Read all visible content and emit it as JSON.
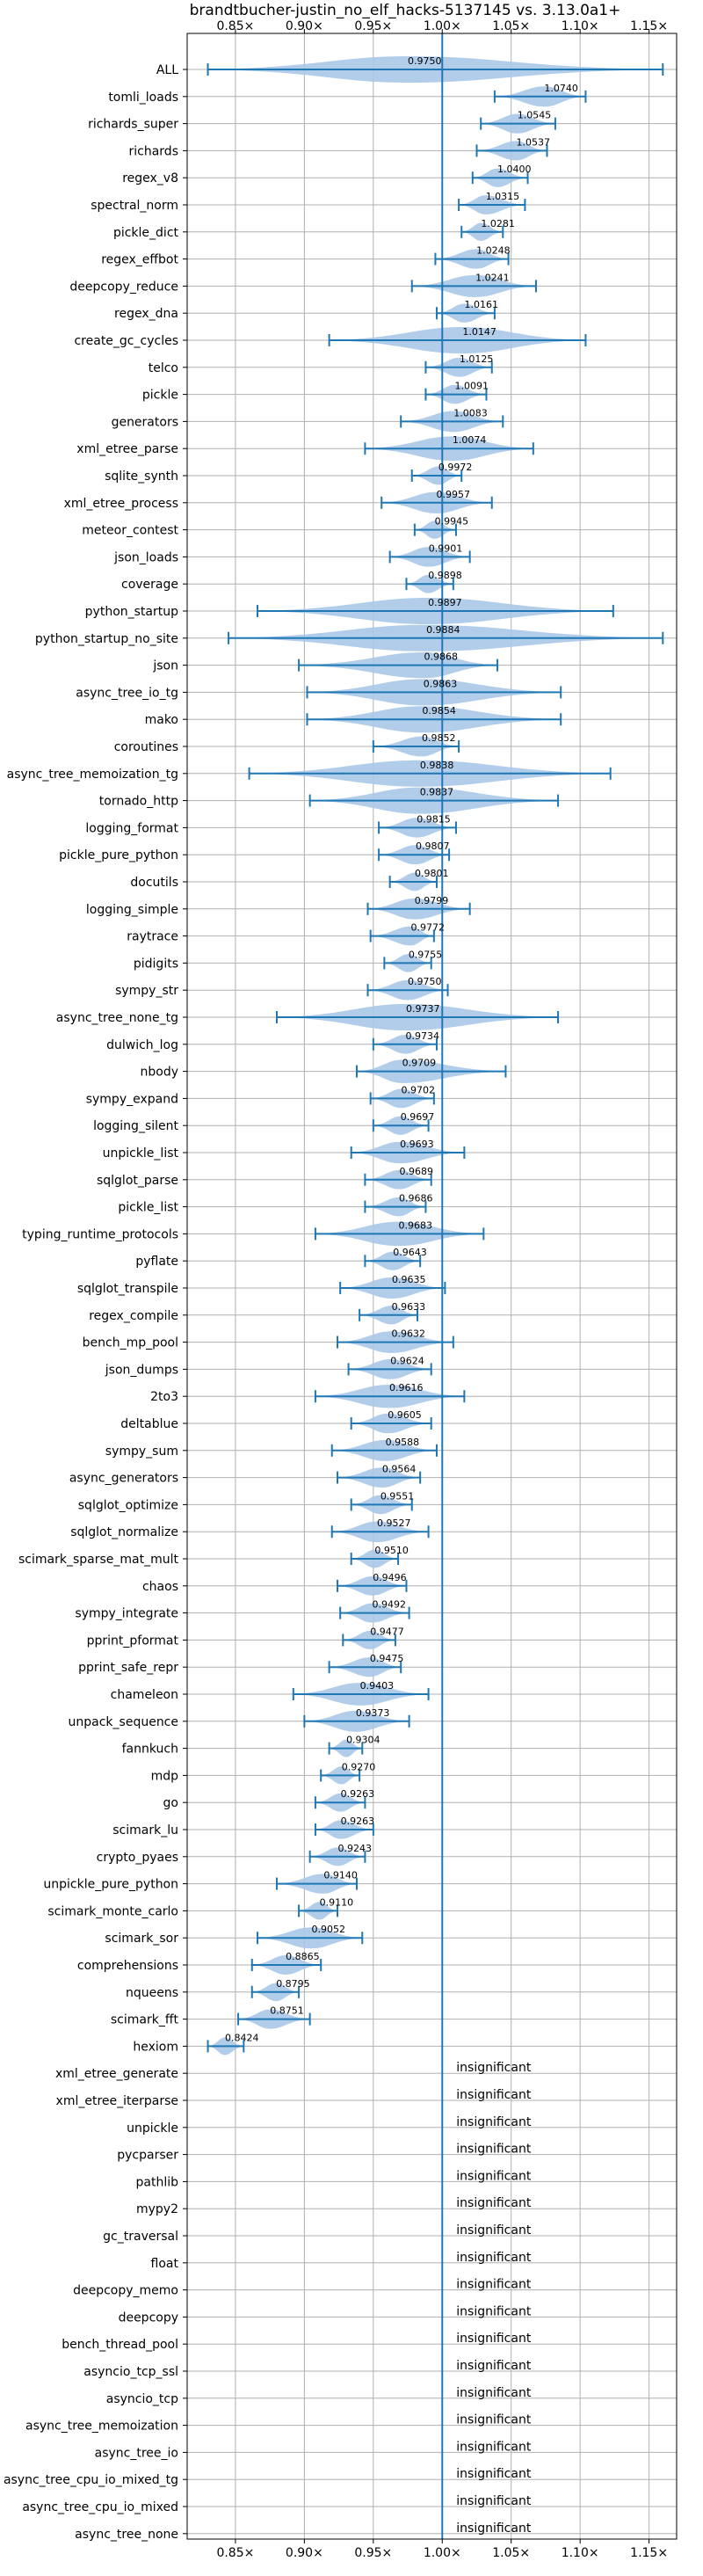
{
  "chart_data": {
    "type": "violin",
    "title": "brandtbucher-justin_no_elf_hacks-5137145 vs. 3.13.0a1+",
    "xlabel": "",
    "ylabel": "",
    "xlim": [
      0.815,
      1.17
    ],
    "x_ticks": [
      0.85,
      0.9,
      0.95,
      1.0,
      1.05,
      1.1,
      1.15
    ],
    "x_tick_labels": [
      "0.85×",
      "0.90×",
      "0.95×",
      "1.00×",
      "1.05×",
      "1.10×",
      "1.15×"
    ],
    "reference_line": 1.0,
    "grid": true,
    "colors": {
      "violin": "#a8c8e8",
      "error_bar": "#1f77b4",
      "reference": "#1f77b4",
      "grid": "#b0b0b0"
    },
    "insignificant_text": "insignificant",
    "benchmarks": [
      {
        "name": "ALL",
        "mean": 0.975,
        "label": "0.9750",
        "low": 0.83,
        "high": 1.16
      },
      {
        "name": "tomli_loads",
        "mean": 1.074,
        "label": "1.0740",
        "low": 1.038,
        "high": 1.104
      },
      {
        "name": "richards_super",
        "mean": 1.0545,
        "label": "1.0545",
        "low": 1.028,
        "high": 1.082
      },
      {
        "name": "richards",
        "mean": 1.0537,
        "label": "1.0537",
        "low": 1.025,
        "high": 1.076
      },
      {
        "name": "regex_v8",
        "mean": 1.04,
        "label": "1.0400",
        "low": 1.022,
        "high": 1.062
      },
      {
        "name": "spectral_norm",
        "mean": 1.0315,
        "label": "1.0315",
        "low": 1.012,
        "high": 1.06
      },
      {
        "name": "pickle_dict",
        "mean": 1.0281,
        "label": "1.0281",
        "low": 1.014,
        "high": 1.044
      },
      {
        "name": "regex_effbot",
        "mean": 1.0248,
        "label": "1.0248",
        "low": 0.995,
        "high": 1.048
      },
      {
        "name": "deepcopy_reduce",
        "mean": 1.0241,
        "label": "1.0241",
        "low": 0.978,
        "high": 1.068
      },
      {
        "name": "regex_dna",
        "mean": 1.0161,
        "label": "1.0161",
        "low": 0.996,
        "high": 1.038
      },
      {
        "name": "create_gc_cycles",
        "mean": 1.0147,
        "label": "1.0147",
        "low": 0.918,
        "high": 1.104
      },
      {
        "name": "telco",
        "mean": 1.0125,
        "label": "1.0125",
        "low": 0.988,
        "high": 1.036
      },
      {
        "name": "pickle",
        "mean": 1.0091,
        "label": "1.0091",
        "low": 0.988,
        "high": 1.032
      },
      {
        "name": "generators",
        "mean": 1.0083,
        "label": "1.0083",
        "low": 0.97,
        "high": 1.044
      },
      {
        "name": "xml_etree_parse",
        "mean": 1.0074,
        "label": "1.0074",
        "low": 0.944,
        "high": 1.066
      },
      {
        "name": "sqlite_synth",
        "mean": 0.9972,
        "label": "0.9972",
        "low": 0.978,
        "high": 1.014
      },
      {
        "name": "xml_etree_process",
        "mean": 0.9957,
        "label": "0.9957",
        "low": 0.956,
        "high": 1.036
      },
      {
        "name": "meteor_contest",
        "mean": 0.9945,
        "label": "0.9945",
        "low": 0.98,
        "high": 1.01
      },
      {
        "name": "json_loads",
        "mean": 0.9901,
        "label": "0.9901",
        "low": 0.962,
        "high": 1.02
      },
      {
        "name": "coverage",
        "mean": 0.9898,
        "label": "0.9898",
        "low": 0.974,
        "high": 1.008
      },
      {
        "name": "python_startup",
        "mean": 0.9897,
        "label": "0.9897",
        "low": 0.866,
        "high": 1.124
      },
      {
        "name": "python_startup_no_site",
        "mean": 0.9884,
        "label": "0.9884",
        "low": 0.845,
        "high": 1.16
      },
      {
        "name": "json",
        "mean": 0.9868,
        "label": "0.9868",
        "low": 0.896,
        "high": 1.04
      },
      {
        "name": "async_tree_io_tg",
        "mean": 0.9863,
        "label": "0.9863",
        "low": 0.902,
        "high": 1.086
      },
      {
        "name": "mako",
        "mean": 0.9854,
        "label": "0.9854",
        "low": 0.902,
        "high": 1.086
      },
      {
        "name": "coroutines",
        "mean": 0.9852,
        "label": "0.9852",
        "low": 0.95,
        "high": 1.012
      },
      {
        "name": "async_tree_memoization_tg",
        "mean": 0.9838,
        "label": "0.9838",
        "low": 0.86,
        "high": 1.122
      },
      {
        "name": "tornado_http",
        "mean": 0.9837,
        "label": "0.9837",
        "low": 0.904,
        "high": 1.084
      },
      {
        "name": "logging_format",
        "mean": 0.9815,
        "label": "0.9815",
        "low": 0.954,
        "high": 1.01
      },
      {
        "name": "pickle_pure_python",
        "mean": 0.9807,
        "label": "0.9807",
        "low": 0.954,
        "high": 1.005
      },
      {
        "name": "docutils",
        "mean": 0.9801,
        "label": "0.9801",
        "low": 0.962,
        "high": 0.996
      },
      {
        "name": "logging_simple",
        "mean": 0.9799,
        "label": "0.9799",
        "low": 0.946,
        "high": 1.02
      },
      {
        "name": "raytrace",
        "mean": 0.9772,
        "label": "0.9772",
        "low": 0.948,
        "high": 0.994
      },
      {
        "name": "pidigits",
        "mean": 0.9755,
        "label": "0.9755",
        "low": 0.958,
        "high": 0.992
      },
      {
        "name": "sympy_str",
        "mean": 0.975,
        "label": "0.9750",
        "low": 0.946,
        "high": 1.004
      },
      {
        "name": "async_tree_none_tg",
        "mean": 0.9737,
        "label": "0.9737",
        "low": 0.88,
        "high": 1.084
      },
      {
        "name": "dulwich_log",
        "mean": 0.9734,
        "label": "0.9734",
        "low": 0.95,
        "high": 0.996
      },
      {
        "name": "nbody",
        "mean": 0.9709,
        "label": "0.9709",
        "low": 0.938,
        "high": 1.046
      },
      {
        "name": "sympy_expand",
        "mean": 0.9702,
        "label": "0.9702",
        "low": 0.948,
        "high": 0.994
      },
      {
        "name": "logging_silent",
        "mean": 0.9697,
        "label": "0.9697",
        "low": 0.95,
        "high": 0.99
      },
      {
        "name": "unpickle_list",
        "mean": 0.9693,
        "label": "0.9693",
        "low": 0.934,
        "high": 1.016
      },
      {
        "name": "sqlglot_parse",
        "mean": 0.9689,
        "label": "0.9689",
        "low": 0.944,
        "high": 0.992
      },
      {
        "name": "pickle_list",
        "mean": 0.9686,
        "label": "0.9686",
        "low": 0.944,
        "high": 0.988
      },
      {
        "name": "typing_runtime_protocols",
        "mean": 0.9683,
        "label": "0.9683",
        "low": 0.908,
        "high": 1.03
      },
      {
        "name": "pyflate",
        "mean": 0.9643,
        "label": "0.9643",
        "low": 0.944,
        "high": 0.984
      },
      {
        "name": "sqlglot_transpile",
        "mean": 0.9635,
        "label": "0.9635",
        "low": 0.926,
        "high": 1.002
      },
      {
        "name": "regex_compile",
        "mean": 0.9633,
        "label": "0.9633",
        "low": 0.94,
        "high": 0.982
      },
      {
        "name": "bench_mp_pool",
        "mean": 0.9632,
        "label": "0.9632",
        "low": 0.924,
        "high": 1.008
      },
      {
        "name": "json_dumps",
        "mean": 0.9624,
        "label": "0.9624",
        "low": 0.932,
        "high": 0.992
      },
      {
        "name": "2to3",
        "mean": 0.9616,
        "label": "0.9616",
        "low": 0.908,
        "high": 1.016
      },
      {
        "name": "deltablue",
        "mean": 0.9605,
        "label": "0.9605",
        "low": 0.934,
        "high": 0.992
      },
      {
        "name": "sympy_sum",
        "mean": 0.9588,
        "label": "0.9588",
        "low": 0.92,
        "high": 0.996
      },
      {
        "name": "async_generators",
        "mean": 0.9564,
        "label": "0.9564",
        "low": 0.924,
        "high": 0.984
      },
      {
        "name": "sqlglot_optimize",
        "mean": 0.9551,
        "label": "0.9551",
        "low": 0.934,
        "high": 0.978
      },
      {
        "name": "sqlglot_normalize",
        "mean": 0.9527,
        "label": "0.9527",
        "low": 0.92,
        "high": 0.99
      },
      {
        "name": "scimark_sparse_mat_mult",
        "mean": 0.951,
        "label": "0.9510",
        "low": 0.934,
        "high": 0.968
      },
      {
        "name": "chaos",
        "mean": 0.9496,
        "label": "0.9496",
        "low": 0.924,
        "high": 0.974
      },
      {
        "name": "sympy_integrate",
        "mean": 0.9492,
        "label": "0.9492",
        "low": 0.926,
        "high": 0.976
      },
      {
        "name": "pprint_pformat",
        "mean": 0.9477,
        "label": "0.9477",
        "low": 0.928,
        "high": 0.966
      },
      {
        "name": "pprint_safe_repr",
        "mean": 0.9475,
        "label": "0.9475",
        "low": 0.918,
        "high": 0.97
      },
      {
        "name": "chameleon",
        "mean": 0.9403,
        "label": "0.9403",
        "low": 0.892,
        "high": 0.99
      },
      {
        "name": "unpack_sequence",
        "mean": 0.9373,
        "label": "0.9373",
        "low": 0.9,
        "high": 0.976
      },
      {
        "name": "fannkuch",
        "mean": 0.9304,
        "label": "0.9304",
        "low": 0.918,
        "high": 0.942
      },
      {
        "name": "mdp",
        "mean": 0.927,
        "label": "0.9270",
        "low": 0.912,
        "high": 0.94
      },
      {
        "name": "go",
        "mean": 0.9263,
        "label": "0.9263",
        "low": 0.908,
        "high": 0.944
      },
      {
        "name": "scimark_lu",
        "mean": 0.9263,
        "label": "0.9263",
        "low": 0.908,
        "high": 0.95
      },
      {
        "name": "crypto_pyaes",
        "mean": 0.9243,
        "label": "0.9243",
        "low": 0.904,
        "high": 0.944
      },
      {
        "name": "unpickle_pure_python",
        "mean": 0.914,
        "label": "0.9140",
        "low": 0.88,
        "high": 0.938
      },
      {
        "name": "scimark_monte_carlo",
        "mean": 0.911,
        "label": "0.9110",
        "low": 0.896,
        "high": 0.924
      },
      {
        "name": "scimark_sor",
        "mean": 0.9052,
        "label": "0.9052",
        "low": 0.866,
        "high": 0.942
      },
      {
        "name": "comprehensions",
        "mean": 0.8865,
        "label": "0.8865",
        "low": 0.862,
        "high": 0.912
      },
      {
        "name": "nqueens",
        "mean": 0.8795,
        "label": "0.8795",
        "low": 0.862,
        "high": 0.896
      },
      {
        "name": "scimark_fft",
        "mean": 0.8751,
        "label": "0.8751",
        "low": 0.852,
        "high": 0.904
      },
      {
        "name": "hexiom",
        "mean": 0.8424,
        "label": "0.8424",
        "low": 0.83,
        "high": 0.856
      },
      {
        "name": "xml_etree_generate",
        "insignificant": true
      },
      {
        "name": "xml_etree_iterparse",
        "insignificant": true
      },
      {
        "name": "unpickle",
        "insignificant": true
      },
      {
        "name": "pycparser",
        "insignificant": true
      },
      {
        "name": "pathlib",
        "insignificant": true
      },
      {
        "name": "mypy2",
        "insignificant": true
      },
      {
        "name": "gc_traversal",
        "insignificant": true
      },
      {
        "name": "float",
        "insignificant": true
      },
      {
        "name": "deepcopy_memo",
        "insignificant": true
      },
      {
        "name": "deepcopy",
        "insignificant": true
      },
      {
        "name": "bench_thread_pool",
        "insignificant": true
      },
      {
        "name": "asyncio_tcp_ssl",
        "insignificant": true
      },
      {
        "name": "asyncio_tcp",
        "insignificant": true
      },
      {
        "name": "async_tree_memoization",
        "insignificant": true
      },
      {
        "name": "async_tree_io",
        "insignificant": true
      },
      {
        "name": "async_tree_cpu_io_mixed_tg",
        "insignificant": true
      },
      {
        "name": "async_tree_cpu_io_mixed",
        "insignificant": true
      },
      {
        "name": "async_tree_none",
        "insignificant": true
      }
    ]
  }
}
